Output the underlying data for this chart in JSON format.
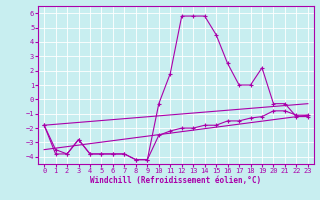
{
  "xlabel": "Windchill (Refroidissement éolien,°C)",
  "background_color": "#c8eef0",
  "grid_color": "#ffffff",
  "line_color": "#aa00aa",
  "xlim": [
    -0.5,
    23.5
  ],
  "ylim": [
    -4.5,
    6.5
  ],
  "xticks": [
    0,
    1,
    2,
    3,
    4,
    5,
    6,
    7,
    8,
    9,
    10,
    11,
    12,
    13,
    14,
    15,
    16,
    17,
    18,
    19,
    20,
    21,
    22,
    23
  ],
  "yticks": [
    -4,
    -3,
    -2,
    -1,
    0,
    1,
    2,
    3,
    4,
    5,
    6
  ],
  "series1_x": [
    0,
    1,
    2,
    3,
    4,
    5,
    6,
    7,
    8,
    9,
    10,
    11,
    12,
    13,
    14,
    15,
    16,
    17,
    18,
    19,
    20,
    21,
    22,
    23
  ],
  "series1_y": [
    -1.8,
    -3.5,
    -3.8,
    -2.8,
    -3.8,
    -3.8,
    -3.8,
    -3.8,
    -4.2,
    -4.2,
    -0.3,
    1.8,
    5.8,
    5.8,
    5.8,
    4.5,
    2.5,
    1.0,
    1.0,
    2.2,
    -0.3,
    -0.3,
    -1.2,
    -1.2
  ],
  "series2_x": [
    0,
    1,
    2,
    3,
    4,
    5,
    6,
    7,
    8,
    9,
    10,
    11,
    12,
    13,
    14,
    15,
    16,
    17,
    18,
    19,
    20,
    21,
    22,
    23
  ],
  "series2_y": [
    -1.8,
    -3.8,
    -3.8,
    -2.8,
    -3.8,
    -3.8,
    -3.8,
    -3.8,
    -4.2,
    -4.2,
    -2.5,
    -2.2,
    -2.0,
    -2.0,
    -1.8,
    -1.8,
    -1.5,
    -1.5,
    -1.3,
    -1.2,
    -0.8,
    -0.8,
    -1.1,
    -1.1
  ],
  "line1_x": [
    0,
    23
  ],
  "line1_y": [
    -1.8,
    -0.3
  ],
  "line2_x": [
    0,
    23
  ],
  "line2_y": [
    -3.5,
    -1.1
  ],
  "figsize": [
    3.2,
    2.0
  ],
  "dpi": 100
}
